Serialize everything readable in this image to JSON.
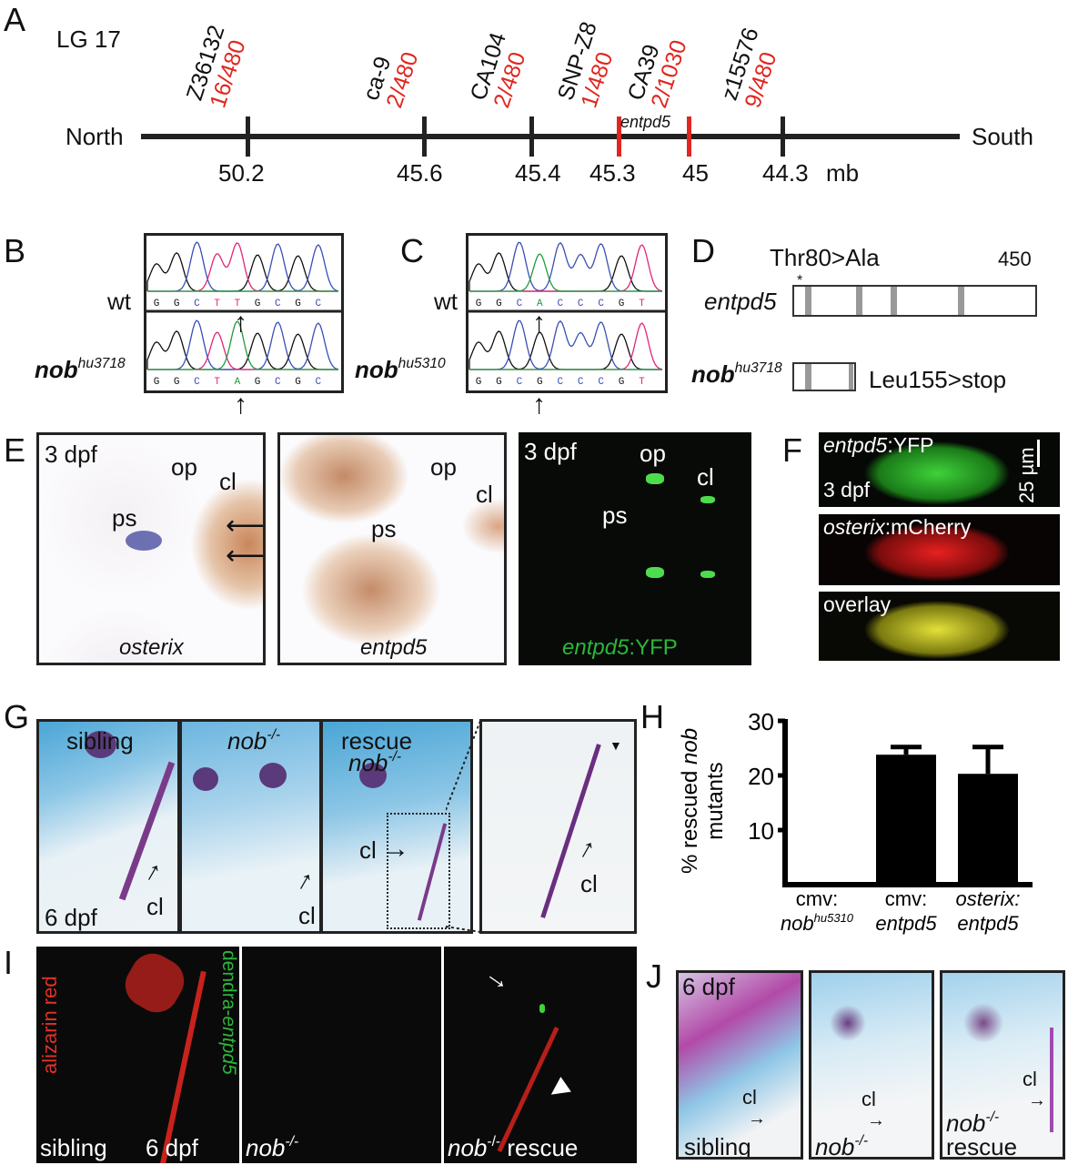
{
  "panels": {
    "A": "A",
    "B": "B",
    "C": "C",
    "D": "D",
    "E": "E",
    "F": "F",
    "G": "G",
    "H": "H",
    "I": "I",
    "J": "J"
  },
  "map": {
    "lg": "LG 17",
    "north": "North",
    "south": "South",
    "gene": "entpd5",
    "unit": "mb",
    "markers": [
      {
        "name": "Z36132",
        "frac": "16/480",
        "pos": "50.2",
        "color": "#222222"
      },
      {
        "name": "ca-9",
        "frac": "2/480",
        "pos": "45.6",
        "color": "#222222"
      },
      {
        "name": "CA104",
        "frac": "2/480",
        "pos": "45.4",
        "color": "#222222"
      },
      {
        "name": "SNP-Z8",
        "frac": "1/480",
        "pos": "45.3",
        "color": "#e0261f"
      },
      {
        "name": "CA39",
        "frac": "2/1030",
        "pos": "45",
        "color": "#e0261f"
      },
      {
        "name": "z15576",
        "frac": "9/480",
        "pos": "44.3",
        "color": "#222222"
      }
    ]
  },
  "seqB": {
    "wt_label": "wt",
    "mut_label": "nob",
    "mut_sup": "hu3718",
    "wt": [
      "G",
      "G",
      "C",
      "T",
      "T",
      "G",
      "C",
      "G",
      "C"
    ],
    "mut": [
      "G",
      "G",
      "C",
      "T",
      "A",
      "G",
      "C",
      "G",
      "C"
    ]
  },
  "seqC": {
    "wt_label": "wt",
    "mut_label": "nob",
    "mut_sup": "hu5310",
    "wt": [
      "G",
      "G",
      "C",
      "A",
      "C",
      "C",
      "C",
      "G",
      "T"
    ],
    "mut": [
      "G",
      "G",
      "C",
      "G",
      "C",
      "C",
      "C",
      "G",
      "T"
    ]
  },
  "base_colors": {
    "G": "#111111",
    "C": "#3a4fb5",
    "T": "#e0267a",
    "A": "#1f9a3c"
  },
  "protein": {
    "mutation": "Thr80>Ala",
    "length": "450",
    "asterisk": "*",
    "gene": "entpd5",
    "mut_label": "nob",
    "mut_sup": "hu3718",
    "stop": "Leu155>stop"
  },
  "E": {
    "dpf": "3 dpf",
    "op": "op",
    "cl": "cl",
    "ps": "ps",
    "osterix": "osterix",
    "entpd5": "entpd5",
    "yfp_gene": "entpd5",
    "yfp_suffix": ":YFP"
  },
  "F": {
    "p1_gene": "entpd5",
    "p1_suffix": ":YFP",
    "dpf": "3 dpf",
    "scale": "25 µm",
    "p2_gene": "osterix",
    "p2_suffix": ":mCherry",
    "p3": "overlay"
  },
  "G": {
    "sibling": "sibling",
    "nob": "nob",
    "sup": "-/-",
    "rescue": "rescue",
    "cl": "cl",
    "dpf": "6 dpf"
  },
  "chart_data": {
    "type": "bar",
    "title": "",
    "ylabel_1": "% rescued ",
    "ylabel_it": "nob",
    "ylabel_2": "mutants",
    "ylim": [
      0,
      30
    ],
    "yticks": [
      10,
      20,
      30
    ],
    "categories": [
      {
        "l1": "cmv:",
        "l2": "nob",
        "sup": "hu5310",
        "italic1": false
      },
      {
        "l1": "cmv:",
        "l2": "entpd5",
        "sup": "",
        "italic1": false
      },
      {
        "l1": "osterix:",
        "l2": "entpd5",
        "sup": "",
        "italic1": true
      }
    ],
    "values": [
      0,
      23.8,
      20.3
    ],
    "errors": [
      0,
      1.4,
      4.9
    ]
  },
  "I": {
    "alizarin": "alizarin red",
    "dendra": "dendra-",
    "dendra_gene": "entpd5",
    "sibling": "sibling",
    "dpf": "6 dpf",
    "nob": "nob",
    "sup": "-/-",
    "rescue": "rescue"
  },
  "J": {
    "dpf": "6 dpf",
    "cl": "cl",
    "sibling": "sibling",
    "nob": "nob",
    "sup": "-/-",
    "rescue": "rescue"
  }
}
